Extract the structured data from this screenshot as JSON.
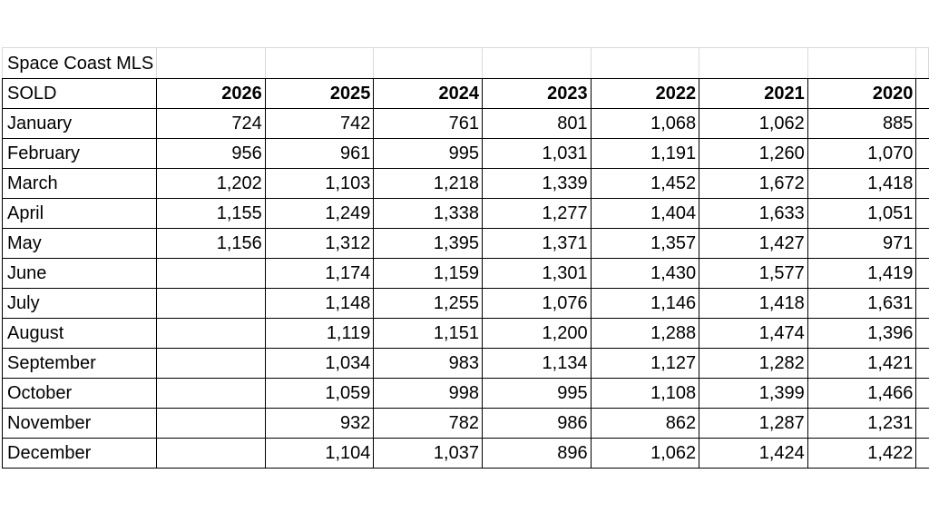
{
  "title": "Space Coast MLS",
  "table": {
    "header": [
      "SOLD",
      "2026",
      "2025",
      "2024",
      "2023",
      "2022",
      "2021",
      "2020"
    ],
    "rows": [
      [
        "January",
        "724",
        "742",
        "761",
        "801",
        "1,068",
        "1,062",
        "885"
      ],
      [
        "February",
        "956",
        "961",
        "995",
        "1,031",
        "1,191",
        "1,260",
        "1,070"
      ],
      [
        "March",
        "1,202",
        "1,103",
        "1,218",
        "1,339",
        "1,452",
        "1,672",
        "1,418"
      ],
      [
        "April",
        "1,155",
        "1,249",
        "1,338",
        "1,277",
        "1,404",
        "1,633",
        "1,051"
      ],
      [
        "May",
        "1,156",
        "1,312",
        "1,395",
        "1,371",
        "1,357",
        "1,427",
        "971"
      ],
      [
        "June",
        null,
        "1,174",
        "1,159",
        "1,301",
        "1,430",
        "1,577",
        "1,419"
      ],
      [
        "July",
        null,
        "1,148",
        "1,255",
        "1,076",
        "1,146",
        "1,418",
        "1,631"
      ],
      [
        "August",
        null,
        "1,119",
        "1,151",
        "1,200",
        "1,288",
        "1,474",
        "1,396"
      ],
      [
        "September",
        null,
        "1,034",
        "983",
        "1,134",
        "1,127",
        "1,282",
        "1,421"
      ],
      [
        "October",
        null,
        "1,059",
        "998",
        "995",
        "1,108",
        "1,399",
        "1,466"
      ],
      [
        "November",
        null,
        "932",
        "782",
        "986",
        "862",
        "1,287",
        "1,231"
      ],
      [
        "December",
        null,
        "1,104",
        "1,037",
        "896",
        "1,062",
        "1,424",
        "1,422"
      ]
    ]
  }
}
